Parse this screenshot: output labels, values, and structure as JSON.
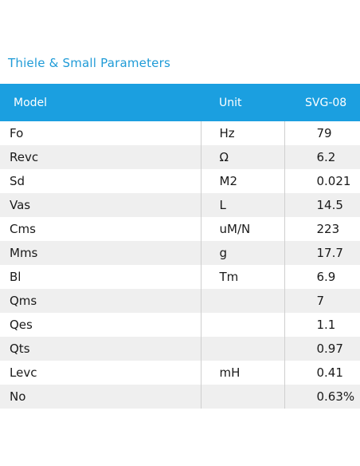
{
  "title": "Thiele & Small Parameters",
  "table": {
    "headers": {
      "model": "Model",
      "unit": "Unit",
      "value": "SVG-08"
    },
    "rows": [
      {
        "model": "Fo",
        "unit": "Hz",
        "value": "79"
      },
      {
        "model": "Revc",
        "unit": "Ω",
        "value": "6.2"
      },
      {
        "model": "Sd",
        "unit": "M2",
        "value": "0.021"
      },
      {
        "model": "Vas",
        "unit": "L",
        "value": "14.5"
      },
      {
        "model": "Cms",
        "unit": "uM/N",
        "value": "223"
      },
      {
        "model": "Mms",
        "unit": "g",
        "value": "17.7"
      },
      {
        "model": "Bl",
        "unit": "Tm",
        "value": "6.9"
      },
      {
        "model": "Qms",
        "unit": "",
        "value": "7"
      },
      {
        "model": "Qes",
        "unit": "",
        "value": "1.1"
      },
      {
        "model": "Qts",
        "unit": "",
        "value": "0.97"
      },
      {
        "model": "Levc",
        "unit": "mH",
        "value": "0.41"
      },
      {
        "model": "No",
        "unit": "",
        "value": "0.63%"
      }
    ]
  },
  "colors": {
    "accent": "#1b9fe0",
    "title": "#1f9bd7",
    "stripe": "#efefef"
  }
}
